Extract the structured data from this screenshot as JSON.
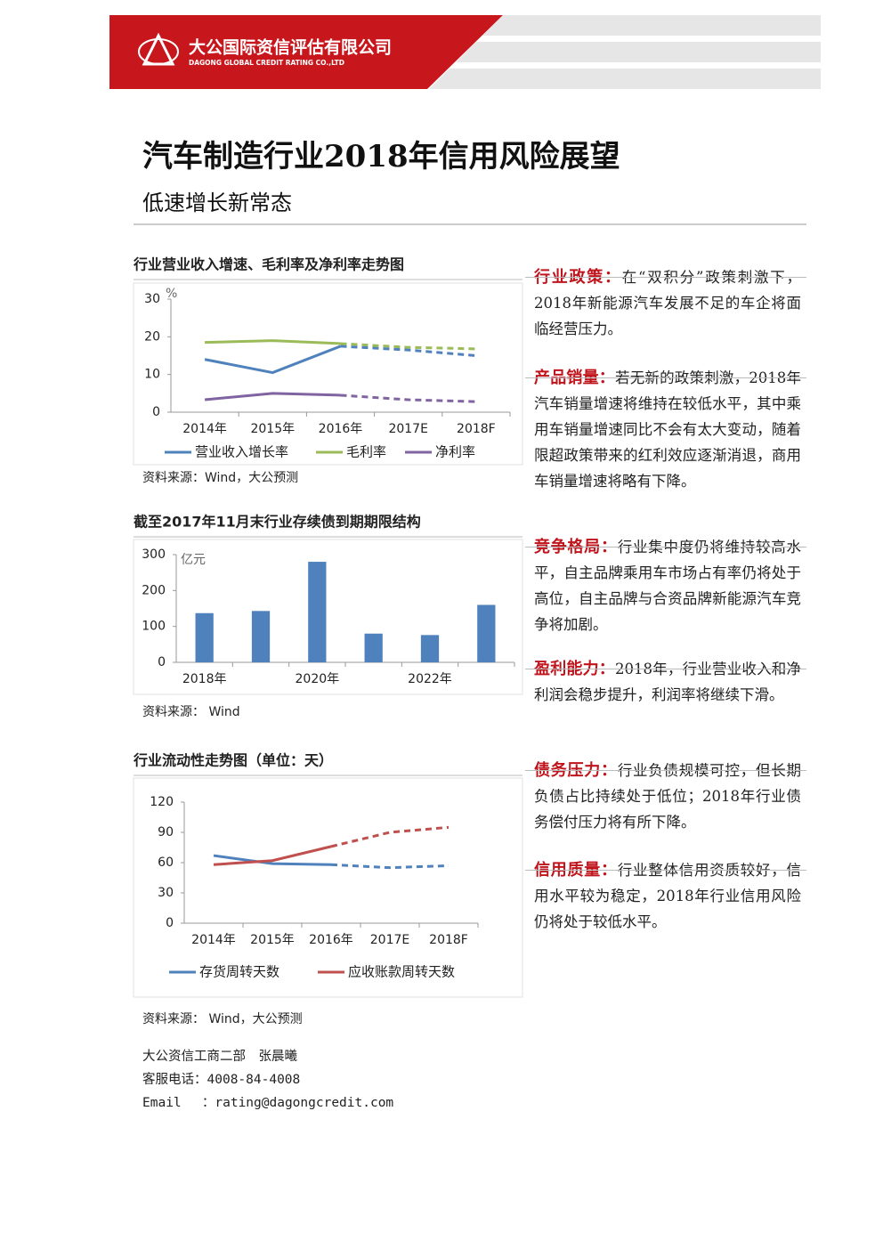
{
  "header": {
    "company": "大公国际资信评估有限公司",
    "company_en": "DAGONG GLOBAL CREDIT RATING CO.,LTD"
  },
  "title": "汽车制造行业2018年信用风险展望",
  "subtitle": "低速增长新常态",
  "chart_data": [
    {
      "type": "line",
      "title": "行业营业收入增速、毛利率及净利率走势图",
      "y_unit": "%",
      "categories": [
        "2014年",
        "2015年",
        "2016年",
        "2017E",
        "2018F"
      ],
      "ylim": [
        0,
        30
      ],
      "yticks": [
        0,
        10,
        20,
        30
      ],
      "dash_from": 2,
      "series": [
        {
          "name": "营业收入增长率",
          "color": "#4f81bd",
          "values": [
            14,
            10.5,
            17.5,
            16.5,
            15
          ]
        },
        {
          "name": "毛利率",
          "color": "#9bbb59",
          "values": [
            18.5,
            19,
            18.2,
            17.2,
            16.8
          ]
        },
        {
          "name": "净利率",
          "color": "#8064a2",
          "values": [
            3.3,
            5,
            4.5,
            3.3,
            2.8
          ]
        }
      ],
      "source": "资料来源：Wind，大公预测"
    },
    {
      "type": "bar",
      "title": "截至2017年11月末行业存续债到期期限结构",
      "y_unit": "亿元",
      "categories": [
        "2018年",
        null,
        "2020年",
        null,
        "2022年",
        null
      ],
      "values": [
        137,
        143,
        280,
        80,
        76,
        160
      ],
      "color": "#4f81bd",
      "ylim": [
        0,
        300
      ],
      "yticks": [
        0,
        100,
        200,
        300
      ],
      "source": "资料来源： Wind"
    },
    {
      "type": "line",
      "title": "行业流动性走势图（单位：天）",
      "categories": [
        "2014年",
        "2015年",
        "2016年",
        "2017E",
        "2018F"
      ],
      "ylim": [
        0,
        120
      ],
      "yticks": [
        0,
        30,
        60,
        90,
        120
      ],
      "dash_from": 2,
      "series": [
        {
          "name": "存货周转天数",
          "color": "#4f81bd",
          "values": [
            67,
            59,
            58,
            55,
            57
          ]
        },
        {
          "name": "应收账款周转天数",
          "color": "#c0504d",
          "values": [
            58,
            62,
            76,
            90,
            95
          ]
        }
      ],
      "source": "资料来源： Wind，大公预测"
    }
  ],
  "sections": [
    {
      "heading": "行业政策：",
      "text": "在“双积分”政策刺激下，2018年新能源汽车发展不足的车企将面临经营压力。"
    },
    {
      "heading": "产品销量：",
      "text": "若无新的政策刺激，2018年汽车销量增速将维持在较低水平，其中乘用车销量增速同比不会有太大变动，随着限超政策带来的红利效应逐渐消退，商用车销量增速将略有下降。"
    },
    {
      "heading": "竞争格局：",
      "text": "行业集中度仍将维持较高水平，自主品牌乘用车市场占有率仍将处于高位，自主品牌与合资品牌新能源汽车竞争将加剧。"
    },
    {
      "heading": "盈利能力：",
      "text": "2018年，行业营业收入和净利润会稳步提升，利润率将继续下滑。"
    },
    {
      "heading": "债务压力：",
      "text": "行业负债规模可控，但长期负债占比持续处于低位；2018年行业债务偿付压力将有所下降。"
    },
    {
      "heading": "信用质量：",
      "text": "行业整体信用资质较好，信用水平较为稳定，2018年行业信用风险仍将处于较低水平。"
    }
  ],
  "footer": {
    "author": "大公资信工商二部　张晨曦",
    "phone": "客服电话：4008-84-4008",
    "email": "Email　 ：rating@dagongcredit.com"
  }
}
